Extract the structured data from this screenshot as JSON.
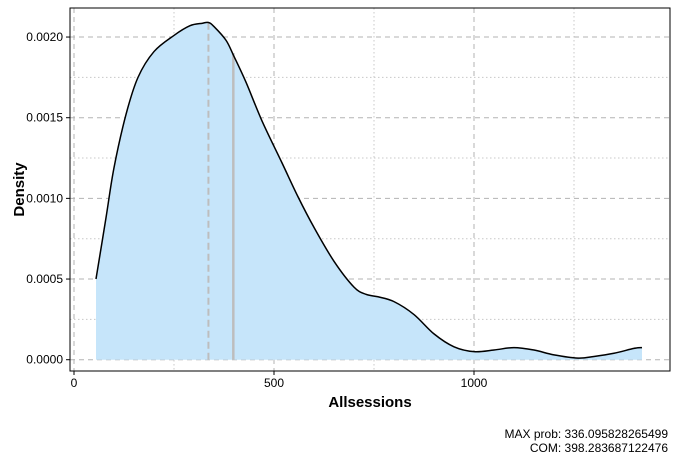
{
  "chart_data": {
    "type": "area",
    "xlabel": "Allsessions",
    "ylabel": "Density",
    "xlim": [
      -10,
      1490
    ],
    "ylim": [
      -7e-05,
      0.00218
    ],
    "x_ticks": [
      0,
      500,
      1000
    ],
    "x_tick_labels": [
      "0",
      "500",
      "1000"
    ],
    "y_ticks": [
      0,
      0.0005,
      0.001,
      0.0015,
      0.002
    ],
    "y_tick_labels": [
      "0.0000",
      "0.0005",
      "0.0010",
      "0.0015",
      "0.0020"
    ],
    "grid": true,
    "fill_color": "#c6e5fa",
    "line_color": "#000000",
    "marker_color": "#bdbdbd",
    "series": [
      {
        "x": [
          55,
          80,
          100,
          130,
          160,
          200,
          250,
          290,
          320,
          336,
          350,
          380,
          400,
          430,
          470,
          520,
          560,
          600,
          650,
          700,
          730,
          760,
          800,
          850,
          900,
          950,
          1000,
          1050,
          1100,
          1150,
          1200,
          1260,
          1300,
          1350,
          1400,
          1420
        ],
        "y": [
          0.0005,
          0.00088,
          0.00119,
          0.00152,
          0.00175,
          0.00191,
          0.00201,
          0.00207,
          0.002085,
          0.00209,
          0.002065,
          0.00198,
          0.00188,
          0.00172,
          0.00148,
          0.00122,
          0.00101,
          0.00082,
          0.00061,
          0.00045,
          0.000405,
          0.00039,
          0.00036,
          0.00028,
          0.00016,
          8e-05,
          5e-05,
          6e-05,
          7.5e-05,
          6e-05,
          3e-05,
          1e-05,
          2e-05,
          4e-05,
          7e-05,
          7.5e-05
        ]
      }
    ],
    "markers": [
      {
        "x": 336.095828265499,
        "y_top": 0.00209,
        "style": "dashed"
      },
      {
        "x": 398.283687122476,
        "y_top": 0.0019,
        "style": "solid"
      }
    ]
  },
  "caption": {
    "max_prob": "MAX prob:  336.095828265499",
    "com": "COM:  398.283687122476"
  }
}
